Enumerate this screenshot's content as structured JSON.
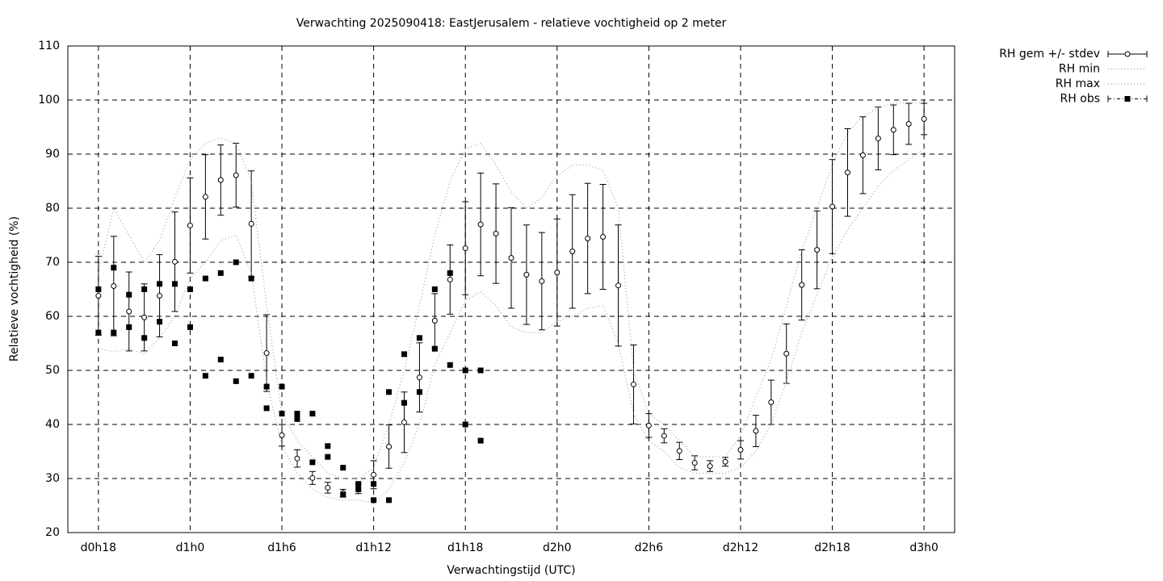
{
  "chart_data": {
    "type": "errorbar",
    "title": "Verwachting 2025090418: EastJerusalem - relatieve vochtigheid op 2 meter",
    "x_label": "Verwachtingstijd (UTC)",
    "y_label": "Relatieve vochtigheid (%)",
    "xlim": [
      16,
      74
    ],
    "ylim": [
      20,
      110
    ],
    "xticks": [
      {
        "value": 18,
        "label": "d0h18"
      },
      {
        "value": 24,
        "label": "d1h0"
      },
      {
        "value": 30,
        "label": "d1h6"
      },
      {
        "value": 36,
        "label": "d1h12"
      },
      {
        "value": 42,
        "label": "d1h18"
      },
      {
        "value": 48,
        "label": "d2h0"
      },
      {
        "value": 54,
        "label": "d2h6"
      },
      {
        "value": 60,
        "label": "d2h12"
      },
      {
        "value": 66,
        "label": "d2h18"
      },
      {
        "value": 72,
        "label": "d3h0"
      }
    ],
    "yticks": [
      20,
      30,
      40,
      50,
      60,
      70,
      80,
      90,
      100,
      110
    ],
    "grid": true,
    "legend": "outside-top-right",
    "x": [
      18,
      19,
      20,
      21,
      22,
      23,
      24,
      25,
      26,
      27,
      28,
      29,
      30,
      31,
      32,
      33,
      34,
      35,
      36,
      37,
      38,
      39,
      40,
      41,
      42,
      43,
      44,
      45,
      46,
      47,
      48,
      49,
      50,
      51,
      52,
      53,
      54,
      55,
      56,
      57,
      58,
      59,
      60,
      61,
      62,
      63,
      64,
      65,
      66,
      67,
      68,
      69,
      70,
      71,
      72
    ],
    "series": [
      {
        "name": "RH gem +/- stdev",
        "style": "errorbar",
        "color": "#000000",
        "values": [
          63.8,
          65.6,
          60.9,
          59.8,
          63.8,
          70.1,
          76.8,
          82.1,
          85.2,
          86.1,
          77.1,
          53.2,
          38,
          33.7,
          30.1,
          28.3,
          27.3,
          28.1,
          30.7,
          35.9,
          40.4,
          48.7,
          59.2,
          66.8,
          72.6,
          77,
          75.3,
          70.8,
          67.7,
          66.5,
          68.1,
          72,
          74.4,
          74.7,
          65.7,
          47.4,
          39.8,
          37.9,
          35.1,
          32.9,
          32.3,
          33.1,
          35.3,
          38.8,
          44.1,
          53.1,
          65.8,
          72.3,
          80.3,
          86.6,
          89.8,
          92.9,
          94.5,
          95.6,
          96.5
        ],
        "stdev": [
          7.3,
          9.2,
          7.3,
          6.2,
          7.6,
          9.2,
          8.8,
          7.8,
          6.5,
          5.9,
          9.8,
          7.1,
          2,
          1.6,
          1.2,
          1,
          0.7,
          0.9,
          2.6,
          4,
          5.6,
          6.4,
          5,
          6.4,
          8.6,
          9.5,
          9.2,
          9.3,
          9.2,
          9,
          9.9,
          10.5,
          10.2,
          9.7,
          11.2,
          7.3,
          2.2,
          1.3,
          1.6,
          1.3,
          1,
          0.8,
          1.7,
          2.9,
          4.1,
          5.5,
          6.5,
          7.2,
          8.7,
          8.1,
          7.1,
          5.8,
          4.6,
          3.8,
          2.9
        ]
      },
      {
        "name": "RH min",
        "style": "dotted",
        "color": "#a0a0a0",
        "values": [
          54,
          53.5,
          54,
          53,
          56,
          60,
          67,
          70,
          74,
          75,
          68,
          48,
          36,
          31,
          28,
          26.5,
          26,
          26,
          25.5,
          28,
          33,
          40,
          51,
          57,
          63,
          64.5,
          62,
          58,
          57,
          57,
          59,
          60,
          61.5,
          62,
          55,
          42,
          37,
          35,
          32,
          31,
          31,
          31,
          32,
          35,
          40,
          48,
          57,
          64,
          71,
          76,
          80,
          84,
          87,
          89,
          91
        ]
      },
      {
        "name": "RH max",
        "style": "dotted",
        "color": "#a0a0a0",
        "values": [
          68,
          80,
          75,
          70,
          74,
          82,
          89,
          92,
          93,
          92,
          85,
          62,
          42,
          37,
          34,
          31,
          30,
          30,
          32,
          40,
          50,
          62,
          75,
          85,
          91,
          92,
          88,
          83,
          80,
          82,
          86,
          88,
          88,
          87,
          80,
          50,
          42,
          40,
          37,
          34,
          34,
          34,
          38,
          45,
          52,
          62,
          72,
          80,
          88,
          94,
          97,
          98.5,
          99.5,
          99.5,
          99.5
        ]
      },
      {
        "name": "RH obs",
        "style": "points",
        "color": "#000000",
        "x": [
          18,
          18,
          19,
          19,
          20,
          20,
          21,
          21,
          22,
          22,
          23,
          23,
          24,
          24,
          25,
          25,
          26,
          26,
          27,
          27,
          28,
          28,
          29,
          29,
          30,
          30,
          31,
          31,
          32,
          32,
          33,
          33,
          34,
          34,
          35,
          35,
          36,
          36,
          37,
          37,
          38,
          38,
          39,
          39,
          40,
          40,
          41,
          41,
          42,
          42,
          43,
          43
        ],
        "values": [
          65,
          57,
          69,
          57,
          64,
          58,
          65,
          56,
          66,
          59,
          66,
          55,
          65,
          58,
          67,
          49,
          68,
          52,
          70,
          48,
          67,
          49,
          47,
          43,
          47,
          42,
          42,
          41,
          42,
          33,
          36,
          34,
          32,
          27,
          29,
          28,
          29,
          26,
          46,
          26,
          53,
          44,
          56,
          46,
          65,
          54,
          68,
          51,
          50,
          40,
          50,
          37
        ]
      }
    ]
  }
}
